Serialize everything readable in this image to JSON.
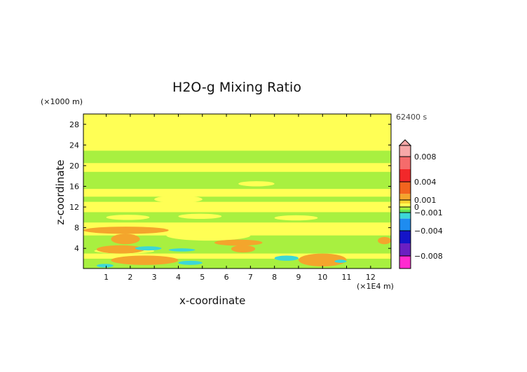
{
  "chart_data": {
    "type": "heatmap",
    "title": "H2O-g Mixing Ratio",
    "xlabel": "x-coordinate",
    "ylabel": "z-coordinate",
    "x_unit": "(×1E4 m)",
    "y_unit": "(×1000 m)",
    "time_label": "62400 s",
    "xlim": [
      0.05,
      12.85
    ],
    "ylim": [
      0.1,
      30.0
    ],
    "x_ticks": [
      1,
      2,
      3,
      4,
      5,
      6,
      7,
      8,
      9,
      10,
      11,
      12
    ],
    "y_ticks": [
      4,
      8,
      12,
      16,
      20,
      24,
      28
    ],
    "colorbar": {
      "tick_labels": [
        "0.008",
        "0.004",
        "0.001",
        "0",
        "−0.001",
        "−0.004",
        "−0.008"
      ],
      "tick_values": [
        0.008,
        0.004,
        0.001,
        0,
        -0.001,
        -0.004,
        -0.008
      ],
      "levels": [
        {
          "from": 0.008,
          "to": 0.01,
          "color": "#f7a8a8"
        },
        {
          "from": 0.006,
          "to": 0.008,
          "color": "#f56b6b"
        },
        {
          "from": 0.004,
          "to": 0.006,
          "color": "#f2282a"
        },
        {
          "from": 0.002,
          "to": 0.004,
          "color": "#f2641e"
        },
        {
          "from": 0.001,
          "to": 0.002,
          "color": "#f4a52c"
        },
        {
          "from": 0.0005,
          "to": 0.001,
          "color": "#f8d12f"
        },
        {
          "from": 0.0,
          "to": 0.0005,
          "color": "#ffff55"
        },
        {
          "from": -0.0005,
          "to": 0.0,
          "color": "#a8f040"
        },
        {
          "from": -0.001,
          "to": -0.0005,
          "color": "#5ce65c"
        },
        {
          "from": -0.002,
          "to": -0.001,
          "color": "#3cd7d7"
        },
        {
          "from": -0.004,
          "to": -0.002,
          "color": "#1e8cf0"
        },
        {
          "from": -0.006,
          "to": -0.004,
          "color": "#1414c8"
        },
        {
          "from": -0.008,
          "to": -0.006,
          "color": "#6a1fc2"
        },
        {
          "from": -0.01,
          "to": -0.008,
          "color": "#ff2ad0"
        }
      ]
    },
    "regions": [
      {
        "level": 0.0002,
        "x": [
          0.05,
          12.85
        ],
        "y": [
          0.1,
          30.0
        ]
      },
      {
        "level": -0.0003,
        "x": [
          0.05,
          12.85
        ],
        "y": [
          20.5,
          22.9
        ]
      },
      {
        "level": -0.0003,
        "x": [
          0.05,
          12.85
        ],
        "y": [
          15.5,
          18.8
        ]
      },
      {
        "level": -0.0003,
        "x": [
          0.05,
          12.85
        ],
        "y": [
          13.0,
          14.0
        ]
      },
      {
        "level": -0.0003,
        "x": [
          0.05,
          12.85
        ],
        "y": [
          9.0,
          11.0
        ]
      },
      {
        "level": -0.0003,
        "x": [
          0.05,
          12.85
        ],
        "y": [
          3.0,
          6.5
        ]
      },
      {
        "level": -0.0003,
        "x": [
          0.05,
          12.85
        ],
        "y": [
          0.1,
          2.0
        ]
      },
      {
        "level": 0.0002,
        "x": [
          1.0,
          2.8
        ],
        "y": [
          9.5,
          10.5
        ]
      },
      {
        "level": 0.0002,
        "x": [
          4.0,
          5.8
        ],
        "y": [
          9.7,
          10.7
        ]
      },
      {
        "level": 0.0002,
        "x": [
          8.0,
          9.8
        ],
        "y": [
          9.4,
          10.4
        ]
      },
      {
        "level": 0.0002,
        "x": [
          3.0,
          5.0
        ],
        "y": [
          12.8,
          14.2
        ]
      },
      {
        "level": 0.0002,
        "x": [
          6.5,
          8.0
        ],
        "y": [
          16.0,
          17.0
        ]
      },
      {
        "level": 0.0002,
        "x": [
          3.5,
          7.0
        ],
        "y": [
          5.5,
          7.5
        ]
      },
      {
        "level": 0.0002,
        "x": [
          7.2,
          11.5
        ],
        "y": [
          7.0,
          8.5
        ]
      },
      {
        "level": 0.0002,
        "x": [
          0.5,
          3.0
        ],
        "y": [
          3.0,
          4.0
        ]
      },
      {
        "level": 0.0015,
        "x": [
          0.05,
          3.6
        ],
        "y": [
          6.8,
          8.2
        ]
      },
      {
        "level": 0.0015,
        "x": [
          1.2,
          2.4
        ],
        "y": [
          4.8,
          6.8
        ]
      },
      {
        "level": 0.0015,
        "x": [
          0.6,
          2.6
        ],
        "y": [
          3.0,
          4.6
        ]
      },
      {
        "level": 0.0015,
        "x": [
          1.2,
          4.0
        ],
        "y": [
          0.8,
          2.6
        ]
      },
      {
        "level": 0.0015,
        "x": [
          5.5,
          7.5
        ],
        "y": [
          4.5,
          5.7
        ]
      },
      {
        "level": 0.0015,
        "x": [
          6.2,
          7.2
        ],
        "y": [
          3.2,
          4.6
        ]
      },
      {
        "level": 0.0015,
        "x": [
          9.0,
          11.0
        ],
        "y": [
          0.5,
          3.0
        ]
      },
      {
        "level": 0.0015,
        "x": [
          12.3,
          12.85
        ],
        "y": [
          4.8,
          6.2
        ]
      },
      {
        "level": -0.0015,
        "x": [
          2.2,
          3.3
        ],
        "y": [
          3.6,
          4.4
        ]
      },
      {
        "level": -0.0015,
        "x": [
          3.6,
          4.7
        ],
        "y": [
          3.4,
          4.0
        ]
      },
      {
        "level": -0.0015,
        "x": [
          4.0,
          5.0
        ],
        "y": [
          0.8,
          1.6
        ]
      },
      {
        "level": -0.0015,
        "x": [
          8.0,
          9.0
        ],
        "y": [
          1.6,
          2.6
        ]
      },
      {
        "level": -0.0015,
        "x": [
          0.6,
          1.3
        ],
        "y": [
          0.3,
          1.0
        ]
      },
      {
        "level": -0.0015,
        "x": [
          10.5,
          11.0
        ],
        "y": [
          1.2,
          1.8
        ]
      }
    ]
  }
}
